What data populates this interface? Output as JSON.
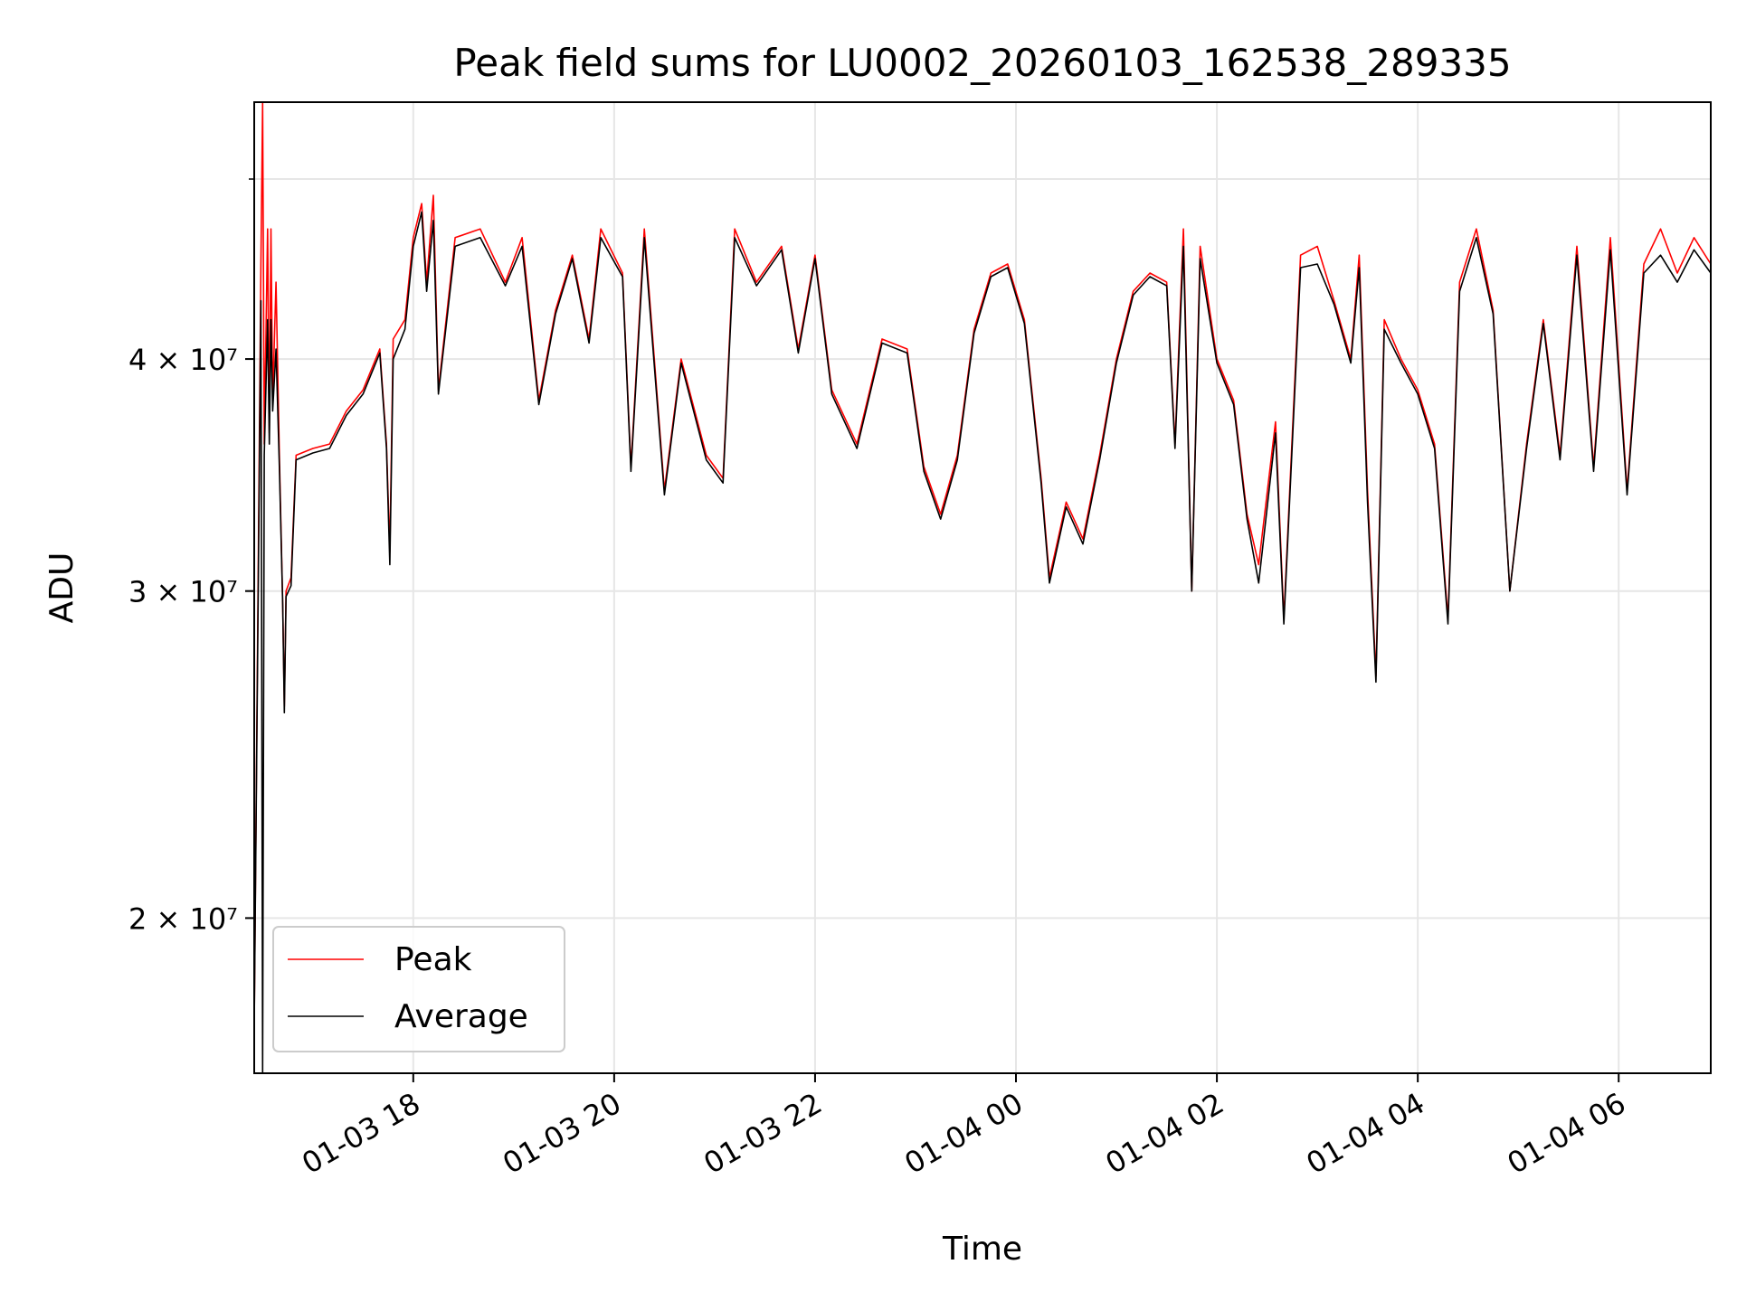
{
  "chart_data": {
    "type": "line",
    "title": "Peak field sums for LU0002_20260103_162538_289335",
    "xlabel": "Time",
    "ylabel": "ADU",
    "yscale": "log",
    "xlim": [
      "2026-01-03 16:25",
      "2026-01-04 06:55"
    ],
    "ylim": [
      16500000,
      55000000
    ],
    "grid": true,
    "legend_position": "lower-left",
    "colors": {
      "Peak": "#ff0000",
      "Average": "#000000",
      "grid": "#e6e6e6"
    },
    "x_ticks": [
      {
        "label": "01-03 18",
        "t": "2026-01-03 18:00"
      },
      {
        "label": "01-03 20",
        "t": "2026-01-03 20:00"
      },
      {
        "label": "01-03 22",
        "t": "2026-01-03 22:00"
      },
      {
        "label": "01-04 00",
        "t": "2026-01-04 00:00"
      },
      {
        "label": "01-04 02",
        "t": "2026-01-04 02:00"
      },
      {
        "label": "01-04 04",
        "t": "2026-01-04 04:00"
      },
      {
        "label": "01-04 06",
        "t": "2026-01-04 06:00"
      }
    ],
    "y_ticks": [
      {
        "label": "2 × 10⁷",
        "value": 20000000
      },
      {
        "label": "3 × 10⁷",
        "value": 30000000
      },
      {
        "label": "4 × 10⁷",
        "value": 40000000
      }
    ],
    "y_minor_ticks": [
      50000000
    ],
    "series": [
      {
        "name": "Peak",
        "points": [
          [
            "2026-01-03 16:25",
            17500000
          ],
          [
            "2026-01-03 16:29",
            45000000
          ],
          [
            "2026-01-03 16:30",
            55000000
          ],
          [
            "2026-01-03 16:31",
            36000000
          ],
          [
            "2026-01-03 16:33",
            47000000
          ],
          [
            "2026-01-03 16:34",
            36500000
          ],
          [
            "2026-01-03 16:35",
            47000000
          ],
          [
            "2026-01-03 16:36",
            38000000
          ],
          [
            "2026-01-03 16:38",
            44000000
          ],
          [
            "2026-01-03 16:40",
            35500000
          ],
          [
            "2026-01-03 16:42",
            29500000
          ],
          [
            "2026-01-03 16:43",
            26000000
          ],
          [
            "2026-01-03 16:44",
            30000000
          ],
          [
            "2026-01-03 16:47",
            30500000
          ],
          [
            "2026-01-03 16:50",
            35500000
          ],
          [
            "2026-01-03 17:00",
            35800000
          ],
          [
            "2026-01-03 17:10",
            36000000
          ],
          [
            "2026-01-03 17:20",
            37500000
          ],
          [
            "2026-01-03 17:30",
            38500000
          ],
          [
            "2026-01-03 17:40",
            40500000
          ],
          [
            "2026-01-03 17:44",
            36000000
          ],
          [
            "2026-01-03 17:46",
            31500000
          ],
          [
            "2026-01-03 17:48",
            41000000
          ],
          [
            "2026-01-03 17:55",
            42000000
          ],
          [
            "2026-01-03 18:00",
            46500000
          ],
          [
            "2026-01-03 18:05",
            48500000
          ],
          [
            "2026-01-03 18:08",
            44000000
          ],
          [
            "2026-01-03 18:12",
            49000000
          ],
          [
            "2026-01-03 18:15",
            38500000
          ],
          [
            "2026-01-03 18:25",
            46500000
          ],
          [
            "2026-01-03 18:40",
            47000000
          ],
          [
            "2026-01-03 18:55",
            44000000
          ],
          [
            "2026-01-03 19:05",
            46500000
          ],
          [
            "2026-01-03 19:15",
            38000000
          ],
          [
            "2026-01-03 19:25",
            42500000
          ],
          [
            "2026-01-03 19:35",
            45500000
          ],
          [
            "2026-01-03 19:45",
            41000000
          ],
          [
            "2026-01-03 19:52",
            47000000
          ],
          [
            "2026-01-03 20:05",
            44500000
          ],
          [
            "2026-01-03 20:10",
            35000000
          ],
          [
            "2026-01-03 20:18",
            47000000
          ],
          [
            "2026-01-03 20:30",
            34000000
          ],
          [
            "2026-01-03 20:40",
            40000000
          ],
          [
            "2026-01-03 20:55",
            35500000
          ],
          [
            "2026-01-03 21:05",
            34500000
          ],
          [
            "2026-01-03 21:12",
            47000000
          ],
          [
            "2026-01-03 21:25",
            44000000
          ],
          [
            "2026-01-03 21:40",
            46000000
          ],
          [
            "2026-01-03 21:50",
            40500000
          ],
          [
            "2026-01-03 22:00",
            45500000
          ],
          [
            "2026-01-03 22:10",
            38500000
          ],
          [
            "2026-01-03 22:25",
            36000000
          ],
          [
            "2026-01-03 22:40",
            41000000
          ],
          [
            "2026-01-03 22:55",
            40500000
          ],
          [
            "2026-01-03 23:05",
            35000000
          ],
          [
            "2026-01-03 23:15",
            33000000
          ],
          [
            "2026-01-03 23:25",
            35500000
          ],
          [
            "2026-01-03 23:35",
            41500000
          ],
          [
            "2026-01-03 23:45",
            44500000
          ],
          [
            "2026-01-03 23:55",
            45000000
          ],
          [
            "2026-01-04 00:05",
            42000000
          ],
          [
            "2026-01-04 00:15",
            34500000
          ],
          [
            "2026-01-04 00:20",
            30500000
          ],
          [
            "2026-01-04 00:30",
            33500000
          ],
          [
            "2026-01-04 00:40",
            32000000
          ],
          [
            "2026-01-04 00:50",
            35500000
          ],
          [
            "2026-01-04 01:00",
            40000000
          ],
          [
            "2026-01-04 01:10",
            43500000
          ],
          [
            "2026-01-04 01:20",
            44500000
          ],
          [
            "2026-01-04 01:30",
            44000000
          ],
          [
            "2026-01-04 01:35",
            36000000
          ],
          [
            "2026-01-04 01:40",
            47000000
          ],
          [
            "2026-01-04 01:45",
            30000000
          ],
          [
            "2026-01-04 01:50",
            46000000
          ],
          [
            "2026-01-04 02:00",
            40000000
          ],
          [
            "2026-01-04 02:10",
            38000000
          ],
          [
            "2026-01-04 02:18",
            33000000
          ],
          [
            "2026-01-04 02:25",
            31000000
          ],
          [
            "2026-01-04 02:35",
            37000000
          ],
          [
            "2026-01-04 02:40",
            29000000
          ],
          [
            "2026-01-04 02:50",
            45500000
          ],
          [
            "2026-01-04 03:00",
            46000000
          ],
          [
            "2026-01-04 03:10",
            43000000
          ],
          [
            "2026-01-04 03:20",
            40000000
          ],
          [
            "2026-01-04 03:25",
            45500000
          ],
          [
            "2026-01-04 03:30",
            34000000
          ],
          [
            "2026-01-04 03:35",
            27000000
          ],
          [
            "2026-01-04 03:40",
            42000000
          ],
          [
            "2026-01-04 03:50",
            40000000
          ],
          [
            "2026-01-04 04:00",
            38500000
          ],
          [
            "2026-01-04 04:10",
            36000000
          ],
          [
            "2026-01-04 04:18",
            29000000
          ],
          [
            "2026-01-04 04:25",
            44000000
          ],
          [
            "2026-01-04 04:35",
            47000000
          ],
          [
            "2026-01-04 04:45",
            42500000
          ],
          [
            "2026-01-04 04:55",
            30000000
          ],
          [
            "2026-01-04 05:05",
            36000000
          ],
          [
            "2026-01-04 05:15",
            42000000
          ],
          [
            "2026-01-04 05:25",
            35500000
          ],
          [
            "2026-01-04 05:35",
            46000000
          ],
          [
            "2026-01-04 05:45",
            35000000
          ],
          [
            "2026-01-04 05:55",
            46500000
          ],
          [
            "2026-01-04 06:05",
            34000000
          ],
          [
            "2026-01-04 06:15",
            45000000
          ],
          [
            "2026-01-04 06:25",
            47000000
          ],
          [
            "2026-01-04 06:35",
            44500000
          ],
          [
            "2026-01-04 06:45",
            46500000
          ],
          [
            "2026-01-04 06:55",
            45000000
          ]
        ]
      },
      {
        "name": "Average",
        "points": [
          [
            "2026-01-03 16:25",
            17500000
          ],
          [
            "2026-01-03 16:29",
            43000000
          ],
          [
            "2026-01-03 16:30",
            16500000
          ],
          [
            "2026-01-03 16:31",
            35500000
          ],
          [
            "2026-01-03 16:33",
            42000000
          ],
          [
            "2026-01-03 16:34",
            36000000
          ],
          [
            "2026-01-03 16:35",
            42000000
          ],
          [
            "2026-01-03 16:36",
            37500000
          ],
          [
            "2026-01-03 16:38",
            40500000
          ],
          [
            "2026-01-03 16:40",
            35000000
          ],
          [
            "2026-01-03 16:42",
            29500000
          ],
          [
            "2026-01-03 16:43",
            25800000
          ],
          [
            "2026-01-03 16:44",
            29800000
          ],
          [
            "2026-01-03 16:47",
            30200000
          ],
          [
            "2026-01-03 16:50",
            35300000
          ],
          [
            "2026-01-03 17:00",
            35600000
          ],
          [
            "2026-01-03 17:10",
            35800000
          ],
          [
            "2026-01-03 17:20",
            37300000
          ],
          [
            "2026-01-03 17:30",
            38300000
          ],
          [
            "2026-01-03 17:40",
            40300000
          ],
          [
            "2026-01-03 17:44",
            35800000
          ],
          [
            "2026-01-03 17:46",
            31000000
          ],
          [
            "2026-01-03 17:48",
            40000000
          ],
          [
            "2026-01-03 17:55",
            41500000
          ],
          [
            "2026-01-03 18:00",
            46000000
          ],
          [
            "2026-01-03 18:05",
            48000000
          ],
          [
            "2026-01-03 18:08",
            43500000
          ],
          [
            "2026-01-03 18:12",
            47500000
          ],
          [
            "2026-01-03 18:15",
            38300000
          ],
          [
            "2026-01-03 18:25",
            46000000
          ],
          [
            "2026-01-03 18:40",
            46500000
          ],
          [
            "2026-01-03 18:55",
            43800000
          ],
          [
            "2026-01-03 19:05",
            46000000
          ],
          [
            "2026-01-03 19:15",
            37800000
          ],
          [
            "2026-01-03 19:25",
            42300000
          ],
          [
            "2026-01-03 19:35",
            45300000
          ],
          [
            "2026-01-03 19:45",
            40800000
          ],
          [
            "2026-01-03 19:52",
            46500000
          ],
          [
            "2026-01-03 20:05",
            44300000
          ],
          [
            "2026-01-03 20:10",
            34800000
          ],
          [
            "2026-01-03 20:18",
            46500000
          ],
          [
            "2026-01-03 20:30",
            33800000
          ],
          [
            "2026-01-03 20:40",
            39800000
          ],
          [
            "2026-01-03 20:55",
            35300000
          ],
          [
            "2026-01-03 21:05",
            34300000
          ],
          [
            "2026-01-03 21:12",
            46500000
          ],
          [
            "2026-01-03 21:25",
            43800000
          ],
          [
            "2026-01-03 21:40",
            45800000
          ],
          [
            "2026-01-03 21:50",
            40300000
          ],
          [
            "2026-01-03 22:00",
            45300000
          ],
          [
            "2026-01-03 22:10",
            38300000
          ],
          [
            "2026-01-03 22:25",
            35800000
          ],
          [
            "2026-01-03 22:40",
            40800000
          ],
          [
            "2026-01-03 22:55",
            40300000
          ],
          [
            "2026-01-03 23:05",
            34800000
          ],
          [
            "2026-01-03 23:15",
            32800000
          ],
          [
            "2026-01-03 23:25",
            35300000
          ],
          [
            "2026-01-03 23:35",
            41300000
          ],
          [
            "2026-01-03 23:45",
            44300000
          ],
          [
            "2026-01-03 23:55",
            44800000
          ],
          [
            "2026-01-04 00:05",
            41800000
          ],
          [
            "2026-01-04 00:15",
            34300000
          ],
          [
            "2026-01-04 00:20",
            30300000
          ],
          [
            "2026-01-04 00:30",
            33300000
          ],
          [
            "2026-01-04 00:40",
            31800000
          ],
          [
            "2026-01-04 00:50",
            35300000
          ],
          [
            "2026-01-04 01:00",
            39800000
          ],
          [
            "2026-01-04 01:10",
            43300000
          ],
          [
            "2026-01-04 01:20",
            44300000
          ],
          [
            "2026-01-04 01:30",
            43800000
          ],
          [
            "2026-01-04 01:35",
            35800000
          ],
          [
            "2026-01-04 01:40",
            46000000
          ],
          [
            "2026-01-04 01:45",
            30000000
          ],
          [
            "2026-01-04 01:50",
            45300000
          ],
          [
            "2026-01-04 02:00",
            39800000
          ],
          [
            "2026-01-04 02:10",
            37800000
          ],
          [
            "2026-01-04 02:18",
            32800000
          ],
          [
            "2026-01-04 02:25",
            30300000
          ],
          [
            "2026-01-04 02:35",
            36500000
          ],
          [
            "2026-01-04 02:40",
            28800000
          ],
          [
            "2026-01-04 02:50",
            44800000
          ],
          [
            "2026-01-04 03:00",
            45000000
          ],
          [
            "2026-01-04 03:10",
            42800000
          ],
          [
            "2026-01-04 03:20",
            39800000
          ],
          [
            "2026-01-04 03:25",
            44800000
          ],
          [
            "2026-01-04 03:30",
            33500000
          ],
          [
            "2026-01-04 03:35",
            26800000
          ],
          [
            "2026-01-04 03:40",
            41500000
          ],
          [
            "2026-01-04 03:50",
            39800000
          ],
          [
            "2026-01-04 04:00",
            38300000
          ],
          [
            "2026-01-04 04:10",
            35800000
          ],
          [
            "2026-01-04 04:18",
            28800000
          ],
          [
            "2026-01-04 04:25",
            43500000
          ],
          [
            "2026-01-04 04:35",
            46500000
          ],
          [
            "2026-01-04 04:45",
            42300000
          ],
          [
            "2026-01-04 04:55",
            30000000
          ],
          [
            "2026-01-04 05:05",
            35800000
          ],
          [
            "2026-01-04 05:15",
            41800000
          ],
          [
            "2026-01-04 05:25",
            35300000
          ],
          [
            "2026-01-04 05:35",
            45500000
          ],
          [
            "2026-01-04 05:45",
            34800000
          ],
          [
            "2026-01-04 05:55",
            45800000
          ],
          [
            "2026-01-04 06:05",
            33800000
          ],
          [
            "2026-01-04 06:15",
            44500000
          ],
          [
            "2026-01-04 06:25",
            45500000
          ],
          [
            "2026-01-04 06:35",
            44000000
          ],
          [
            "2026-01-04 06:45",
            45800000
          ],
          [
            "2026-01-04 06:55",
            44500000
          ]
        ]
      }
    ]
  }
}
